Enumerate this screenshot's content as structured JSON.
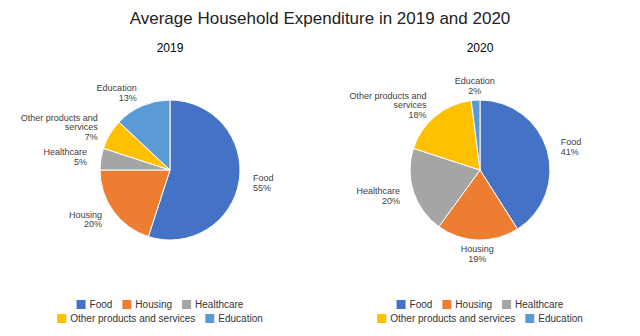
{
  "chart_data": [
    {
      "type": "pie",
      "title": "Average Household Expenditure in 2019 and 2020",
      "subtitle": "2019",
      "categories": [
        "Food",
        "Housing",
        "Healthcare",
        "Other products and services",
        "Education"
      ],
      "values": [
        55,
        20,
        5,
        7,
        13
      ],
      "value_labels": [
        "Food\n55%",
        "Housing\n20%",
        "Healthcare\n5%",
        "Other products and\nservices\n7%",
        "Education\n13%"
      ],
      "colors": [
        "#4472C4",
        "#ED7D31",
        "#A5A5A5",
        "#FFC000",
        "#5B9BD5"
      ],
      "legend": "bottom"
    },
    {
      "type": "pie",
      "subtitle": "2020",
      "categories": [
        "Food",
        "Housing",
        "Healthcare",
        "Other products and services",
        "Education"
      ],
      "values": [
        41,
        19,
        20,
        18,
        2
      ],
      "value_labels": [
        "Food\n41%",
        "Housing\n19%",
        "Healthcare\n20%",
        "Other products and\nservices\n18%",
        "Education\n2%"
      ],
      "colors": [
        "#4472C4",
        "#ED7D31",
        "#A5A5A5",
        "#FFC000",
        "#5B9BD5"
      ],
      "legend": "bottom"
    }
  ]
}
